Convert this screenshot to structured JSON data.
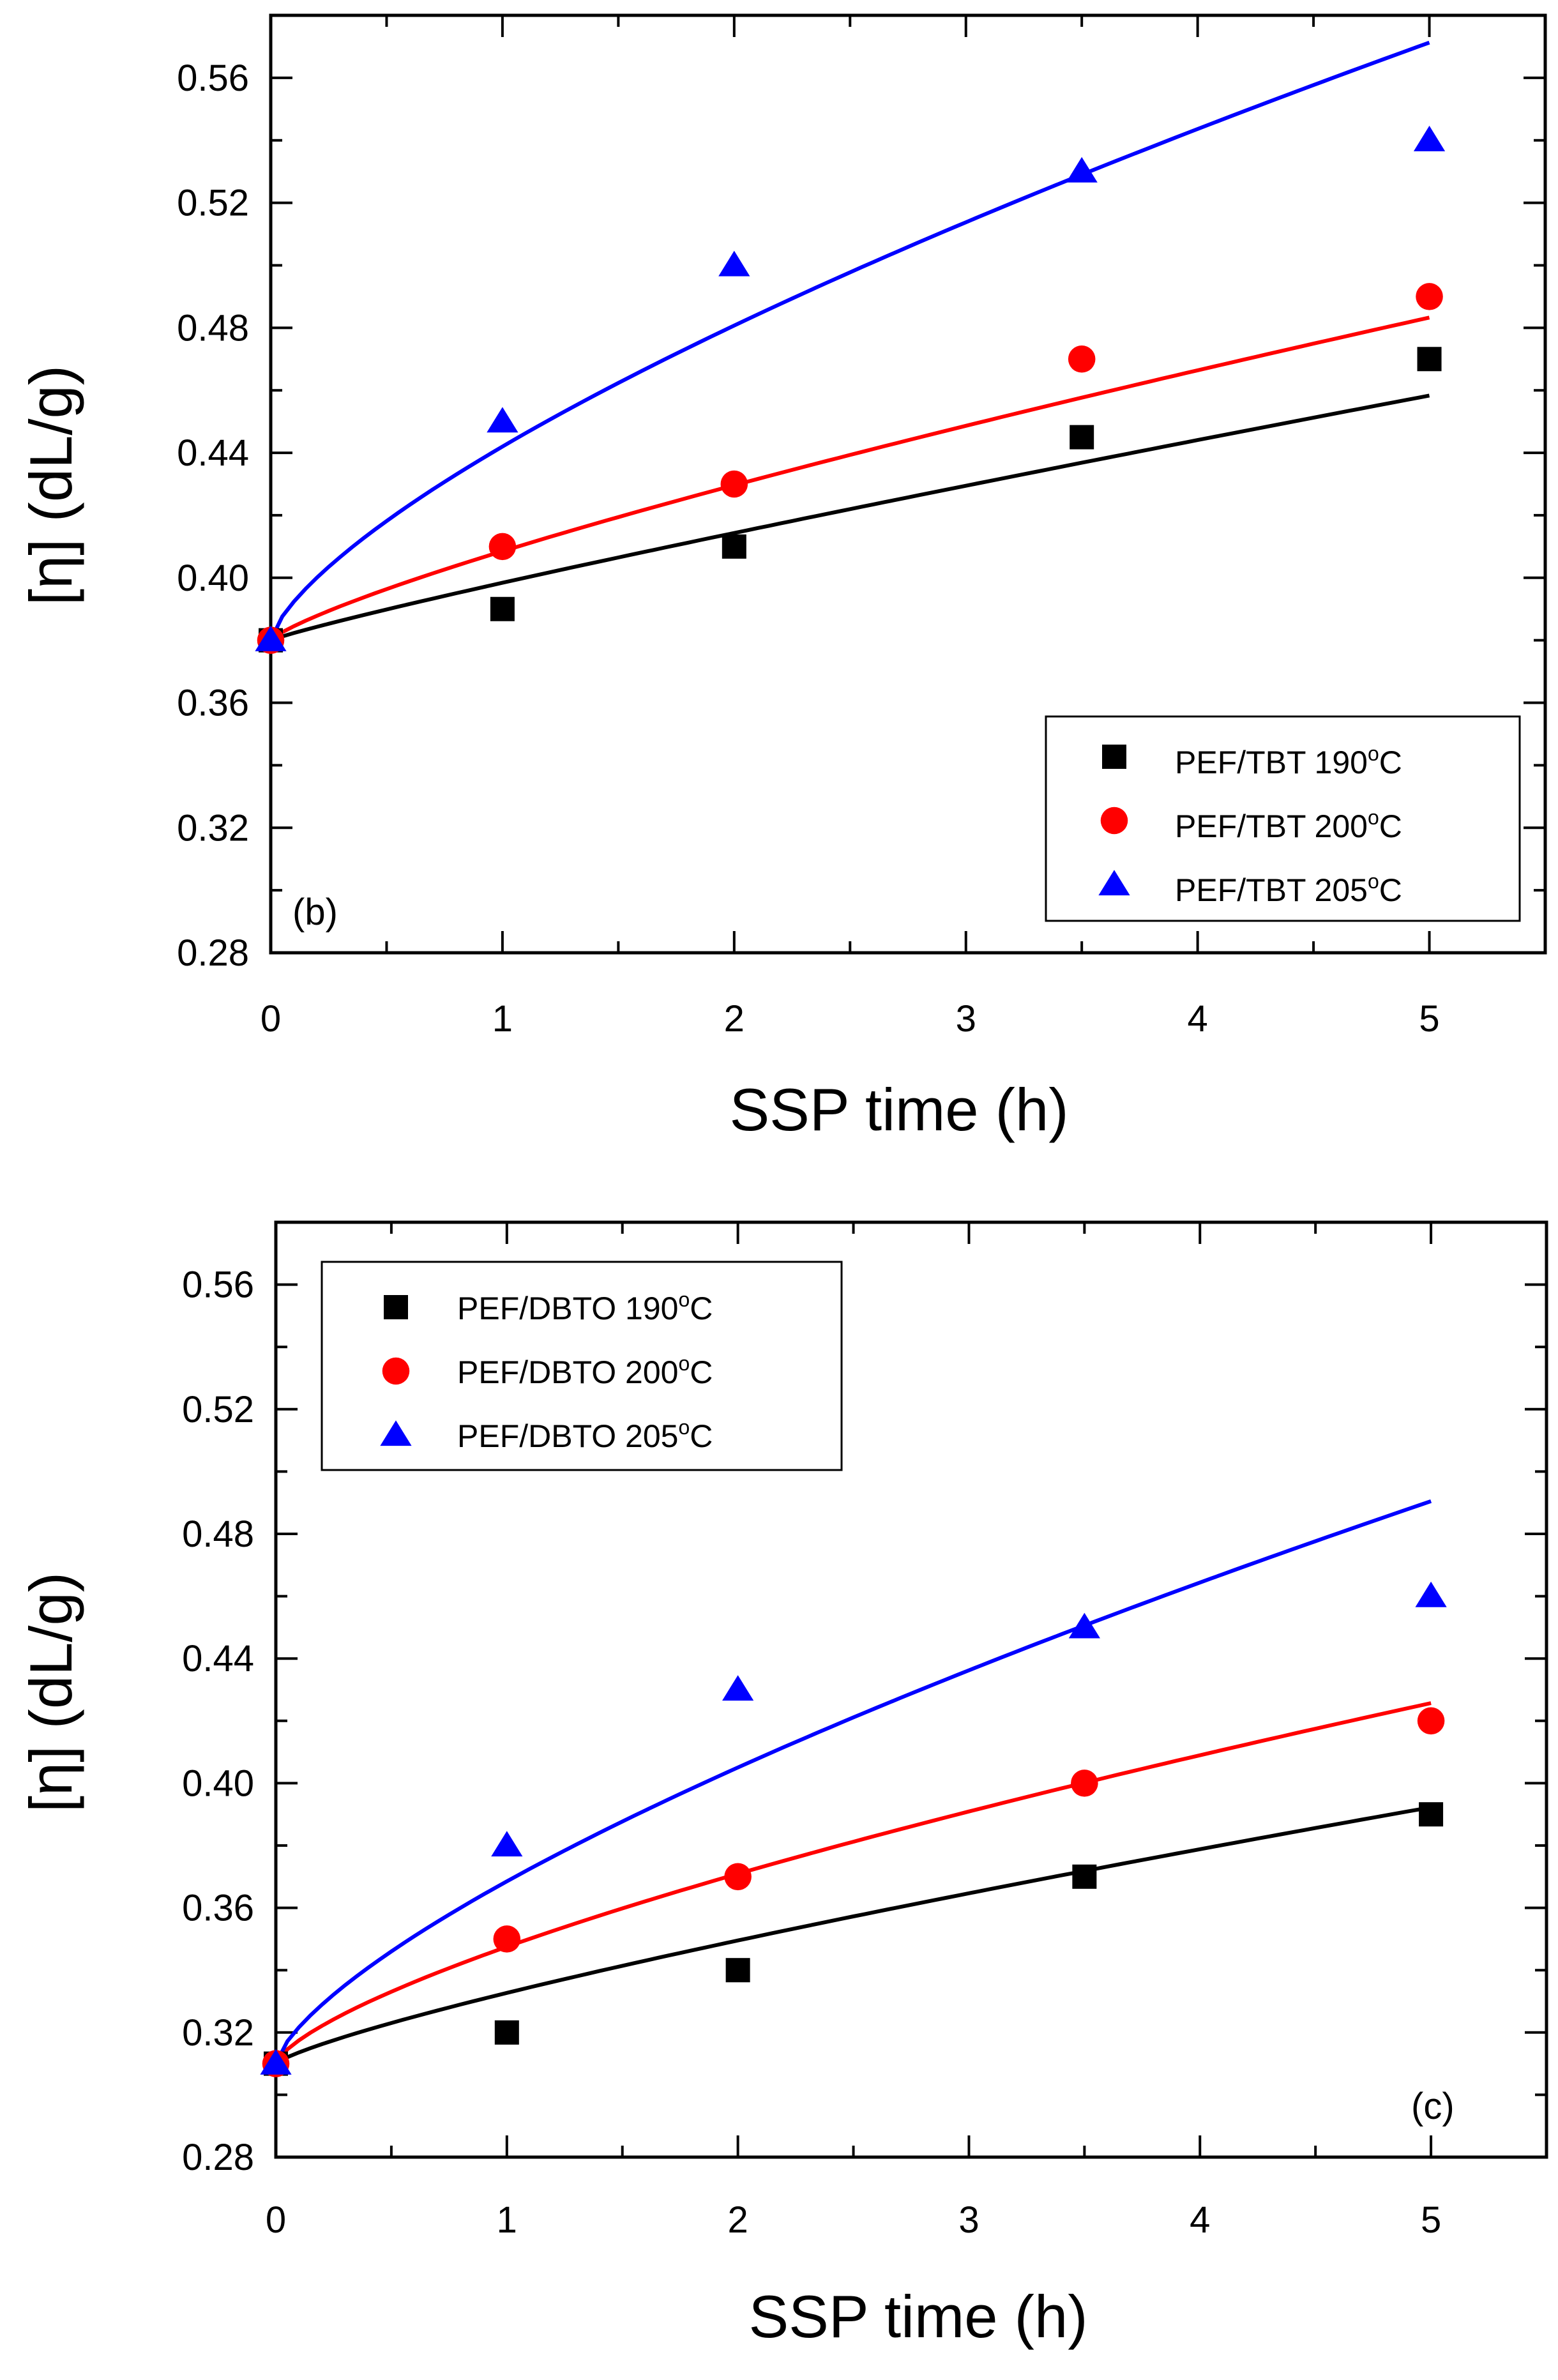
{
  "chart_data": [
    {
      "type": "scatter",
      "panel_label": "(b)",
      "xlabel": "SSP time (h)",
      "ylabel": "[η] (dL/g)",
      "xlim": [
        0,
        5.5
      ],
      "ylim": [
        0.28,
        0.58
      ],
      "xticks": [
        "0",
        "1",
        "2",
        "3",
        "4",
        "5"
      ],
      "yticks": [
        "0.28",
        "0.32",
        "0.36",
        "0.40",
        "0.44",
        "0.48",
        "0.52",
        "0.56"
      ],
      "legend_position": "bottom-right",
      "series": [
        {
          "name": "PEF/TBT 190",
          "name_sup": "o",
          "name_suffix": "C",
          "marker": "square",
          "color": "#000000",
          "x": [
            0,
            1,
            2,
            3.5,
            5
          ],
          "y": [
            0.38,
            0.39,
            0.41,
            0.445,
            0.47
          ],
          "fit": {
            "a": 0.38,
            "b": 0.0184,
            "n": 0.9
          }
        },
        {
          "name": "PEF/TBT 200",
          "name_sup": "o",
          "name_suffix": "C",
          "marker": "circle",
          "color": "#ff0000",
          "x": [
            0,
            1,
            2,
            3.5,
            5
          ],
          "y": [
            0.38,
            0.41,
            0.43,
            0.47,
            0.49
          ],
          "fit": {
            "a": 0.38,
            "b": 0.0285,
            "n": 0.8
          }
        },
        {
          "name": "PEF/TBT 205",
          "name_sup": "o",
          "name_suffix": "C",
          "marker": "triangle",
          "color": "#0000ff",
          "x": [
            0,
            1,
            2,
            3.5,
            5
          ],
          "y": [
            0.38,
            0.45,
            0.5,
            0.53,
            0.54
          ],
          "fit": {
            "a": 0.38,
            "b": 0.062,
            "n": 0.7
          }
        }
      ]
    },
    {
      "type": "scatter",
      "panel_label": "(c)",
      "xlabel": "SSP time (h)",
      "ylabel": "[η] (dL/g)",
      "xlim": [
        0,
        5.5
      ],
      "ylim": [
        0.28,
        0.58
      ],
      "xticks": [
        "0",
        "1",
        "2",
        "3",
        "4",
        "5"
      ],
      "yticks": [
        "0.28",
        "0.32",
        "0.36",
        "0.40",
        "0.44",
        "0.48",
        "0.52",
        "0.56"
      ],
      "legend_position": "top-left",
      "series": [
        {
          "name": "PEF/DBTO 190",
          "name_sup": "o",
          "name_suffix": "C",
          "marker": "square",
          "color": "#000000",
          "x": [
            0,
            1,
            2,
            3.5,
            5
          ],
          "y": [
            0.31,
            0.32,
            0.34,
            0.37,
            0.39
          ],
          "fit": {
            "a": 0.31,
            "b": 0.0227,
            "n": 0.8
          }
        },
        {
          "name": "PEF/DBTO 200",
          "name_sup": "o",
          "name_suffix": "C",
          "marker": "circle",
          "color": "#ff0000",
          "x": [
            0,
            1,
            2,
            3.5,
            5
          ],
          "y": [
            0.31,
            0.35,
            0.37,
            0.4,
            0.42
          ],
          "fit": {
            "a": 0.31,
            "b": 0.0375,
            "n": 0.7
          }
        },
        {
          "name": "PEF/DBTO 205",
          "name_sup": "o",
          "name_suffix": "C",
          "marker": "triangle",
          "color": "#0000ff",
          "x": [
            0,
            1,
            2,
            3.5,
            5
          ],
          "y": [
            0.31,
            0.38,
            0.43,
            0.45,
            0.46
          ],
          "fit": {
            "a": 0.31,
            "b": 0.0585,
            "n": 0.7
          }
        }
      ]
    }
  ]
}
